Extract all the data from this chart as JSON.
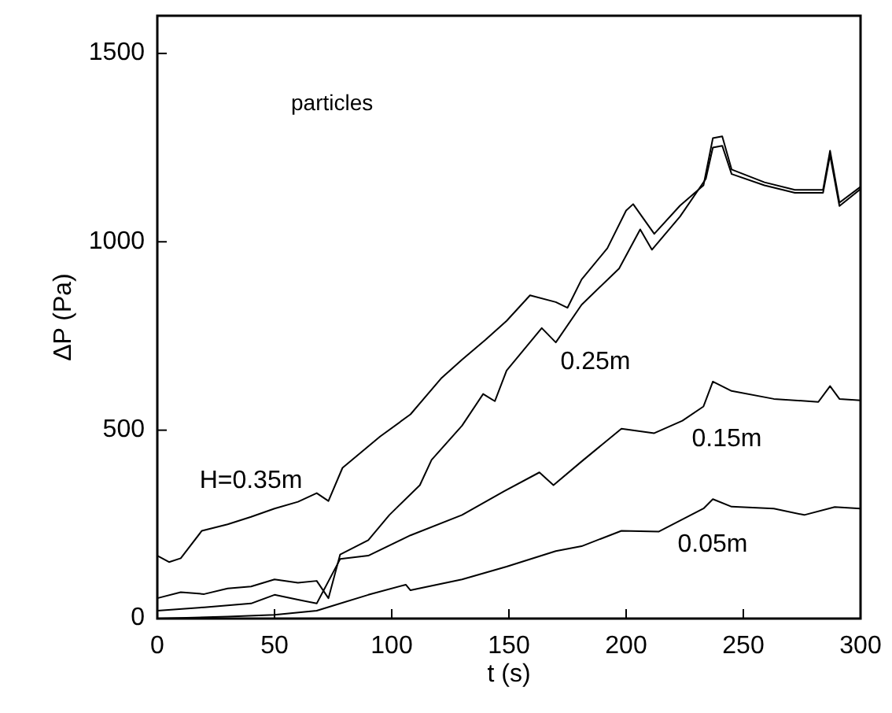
{
  "chart_data": {
    "type": "line",
    "xlabel": "t (s)",
    "ylabel": "ΔP (Pa)",
    "annotations": [
      "particles"
    ],
    "xlim": [
      0,
      300
    ],
    "xticks": [
      0,
      50,
      100,
      150,
      200,
      250,
      300
    ],
    "ylim": [
      0,
      1600
    ],
    "yticks": [
      0,
      500,
      1000,
      1500
    ],
    "grid": false,
    "marker": "none",
    "line_style": "solid",
    "series": [
      {
        "name": "H=0.35m",
        "color": "#000000",
        "x": [
          0,
          5,
          10,
          19,
          30,
          40,
          50,
          60,
          68,
          73,
          79,
          95,
          108,
          121,
          130,
          140,
          149,
          159,
          170,
          175,
          181,
          192,
          200,
          203,
          212,
          223,
          233,
          237,
          241,
          245,
          259,
          272,
          284,
          287,
          291,
          300
        ],
        "values": [
          167,
          150,
          160,
          233,
          250,
          270,
          292,
          310,
          333,
          312,
          400,
          483,
          542,
          637,
          687,
          740,
          790,
          858,
          840,
          825,
          900,
          983,
          1083,
          1100,
          1021,
          1096,
          1150,
          1275,
          1280,
          1192,
          1158,
          1138,
          1138,
          1242,
          1104,
          1146
        ]
      },
      {
        "name": "0.25m",
        "color": "#000000",
        "x": [
          0,
          10,
          20,
          30,
          40,
          50,
          60,
          68,
          73,
          78,
          90,
          99,
          112,
          117,
          130,
          139,
          144,
          149,
          164,
          170,
          181,
          197,
          206,
          211,
          223,
          234,
          237,
          241,
          245,
          259,
          272,
          284,
          287,
          291,
          300
        ],
        "values": [
          54,
          70,
          65,
          80,
          85,
          104,
          95,
          100,
          54,
          170,
          208,
          275,
          354,
          421,
          512,
          596,
          577,
          658,
          771,
          733,
          833,
          929,
          1033,
          979,
          1067,
          1167,
          1250,
          1255,
          1180,
          1150,
          1130,
          1130,
          1230,
          1095,
          1140
        ]
      },
      {
        "name": "0.15m",
        "color": "#000000",
        "x": [
          0,
          20,
          40,
          50,
          60,
          68,
          78,
          90,
          108,
          130,
          148,
          163,
          169,
          181,
          198,
          212,
          224,
          233,
          237,
          245,
          263,
          282,
          287,
          291,
          300
        ],
        "values": [
          21,
          30,
          40,
          63,
          50,
          40,
          158,
          167,
          221,
          275,
          338,
          388,
          354,
          417,
          504,
          492,
          525,
          563,
          629,
          604,
          583,
          575,
          617,
          583,
          579
        ]
      },
      {
        "name": "0.05m",
        "color": "#000000",
        "x": [
          0,
          30,
          50,
          68,
          90,
          106,
          108,
          130,
          149,
          170,
          181,
          198,
          214,
          233,
          237,
          245,
          263,
          276,
          289,
          300
        ],
        "values": [
          0,
          5,
          10,
          21,
          63,
          90,
          75,
          104,
          138,
          179,
          192,
          233,
          231,
          292,
          317,
          297,
          292,
          275,
          296,
          292
        ]
      }
    ]
  }
}
